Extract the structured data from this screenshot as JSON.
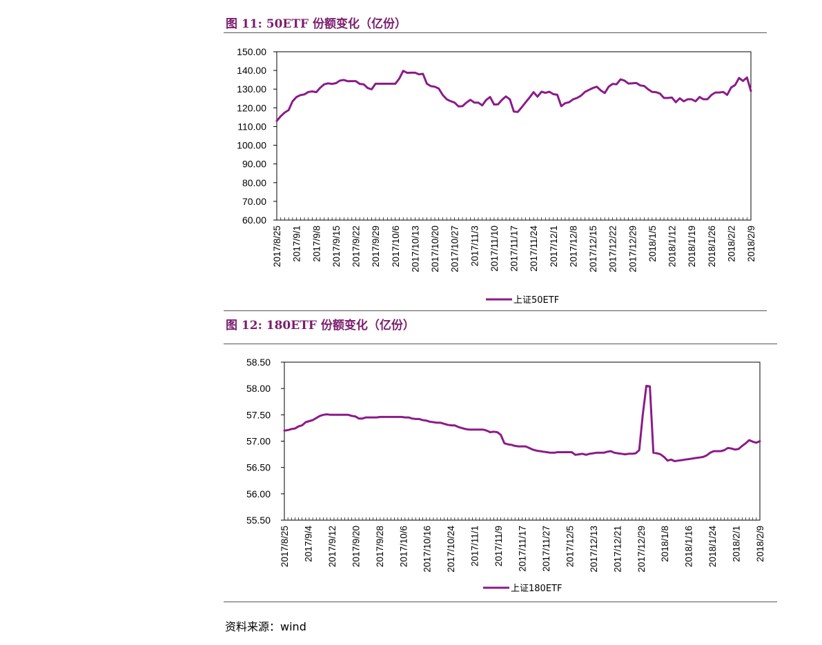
{
  "figure1": {
    "title": "图 11: 50ETF 份额变化（亿份）"
  },
  "figure2": {
    "title": "图 12: 180ETF 份额变化（亿份）"
  },
  "source": {
    "label": "资料来源：",
    "value": "wind"
  },
  "colors": {
    "series": "#8b1a89",
    "title": "#7a1d6e"
  },
  "chart_data": [
    {
      "type": "line",
      "title": "图 11: 50ETF 份额变化（亿份）",
      "xlabel": "",
      "ylabel": "",
      "ylim": [
        60,
        150
      ],
      "y_ticks": [
        "150.00",
        "140.00",
        "130.00",
        "120.00",
        "110.00",
        "100.00",
        "90.00",
        "80.00",
        "70.00",
        "60.00"
      ],
      "x_tick_labels": [
        "2017/8/25",
        "2017/9/1",
        "2017/9/8",
        "2017/9/15",
        "2017/9/22",
        "2017/9/29",
        "2017/10/6",
        "2017/10/13",
        "2017/10/20",
        "2017/10/27",
        "2017/11/3",
        "2017/11/10",
        "2017/11/17",
        "2017/11/24",
        "2017/12/1",
        "2017/12/8",
        "2017/12/15",
        "2017/12/22",
        "2017/12/29",
        "2018/1/5",
        "2018/1/12",
        "2018/1/19",
        "2018/1/26",
        "2018/2/2",
        "2018/2/9"
      ],
      "legend": [
        "上证50ETF"
      ],
      "series": [
        {
          "name": "上证50ETF",
          "values": [
            113.0,
            115.5,
            117.5,
            118.8,
            123.5,
            125.8,
            126.8,
            127.2,
            128.5,
            128.8,
            128.4,
            130.8,
            132.6,
            133.1,
            132.8,
            133.2,
            134.6,
            134.9,
            134.2,
            134.3,
            134.3,
            132.8,
            132.6,
            130.6,
            129.9,
            132.9,
            132.9,
            132.9,
            132.9,
            132.9,
            132.9,
            135.6,
            139.8,
            138.7,
            138.8,
            138.8,
            137.9,
            138.2,
            132.9,
            131.6,
            131.3,
            130.3,
            126.9,
            124.6,
            123.6,
            122.8,
            120.8,
            120.9,
            122.8,
            124.3,
            122.8,
            122.8,
            121.3,
            124.2,
            125.8,
            121.8,
            121.9,
            124.3,
            126.1,
            124.5,
            118.0,
            117.8,
            120.3,
            123.0,
            125.6,
            128.4,
            126.0,
            128.6,
            128.0,
            128.6,
            127.3,
            127.0,
            120.9,
            122.5,
            123.0,
            124.6,
            125.3,
            126.5,
            128.5,
            129.6,
            130.6,
            131.3,
            129.3,
            127.9,
            131.3,
            132.8,
            132.6,
            135.2,
            134.6,
            133.0,
            133.1,
            133.3,
            132.0,
            131.7,
            129.9,
            128.5,
            128.4,
            127.6,
            125.3,
            125.3,
            125.5,
            123.0,
            125.1,
            123.5,
            124.6,
            124.6,
            123.5,
            125.8,
            124.6,
            124.6,
            126.9,
            128.2,
            128.2,
            128.5,
            126.9,
            130.9,
            132.2,
            136.0,
            134.4,
            136.2,
            129.0
          ]
        }
      ]
    },
    {
      "type": "line",
      "title": "图 12: 180ETF 份额变化（亿份）",
      "xlabel": "",
      "ylabel": "",
      "ylim": [
        55.5,
        58.5
      ],
      "y_ticks": [
        "58.50",
        "58.00",
        "57.50",
        "57.00",
        "56.50",
        "56.00",
        "55.50"
      ],
      "x_tick_labels": [
        "2017/8/25",
        "2017/9/4",
        "2017/9/12",
        "2017/9/20",
        "2017/9/28",
        "2017/10/6",
        "2017/10/16",
        "2017/10/24",
        "2017/11/1",
        "2017/11/9",
        "2017/11/17",
        "2017/11/27",
        "2017/12/5",
        "2017/12/13",
        "2017/12/21",
        "2017/12/29",
        "2018/1/8",
        "2018/1/16",
        "2018/1/24",
        "2018/2/1",
        "2018/2/9"
      ],
      "legend": [
        "上证180ETF"
      ],
      "series": [
        {
          "name": "上证180ETF",
          "values": [
            57.2,
            57.21,
            57.23,
            57.24,
            57.28,
            57.3,
            57.36,
            57.38,
            57.4,
            57.44,
            57.48,
            57.5,
            57.51,
            57.5,
            57.5,
            57.5,
            57.5,
            57.5,
            57.5,
            57.48,
            57.47,
            57.43,
            57.43,
            57.45,
            57.45,
            57.45,
            57.45,
            57.46,
            57.46,
            57.46,
            57.46,
            57.46,
            57.46,
            57.46,
            57.45,
            57.45,
            57.43,
            57.42,
            57.42,
            57.4,
            57.39,
            57.37,
            57.36,
            57.35,
            57.35,
            57.33,
            57.31,
            57.3,
            57.3,
            57.27,
            57.25,
            57.23,
            57.22,
            57.22,
            57.22,
            57.22,
            57.22,
            57.2,
            57.17,
            57.18,
            57.17,
            57.12,
            56.96,
            56.94,
            56.93,
            56.91,
            56.9,
            56.9,
            56.9,
            56.87,
            56.84,
            56.82,
            56.81,
            56.8,
            56.79,
            56.78,
            56.78,
            56.79,
            56.79,
            56.79,
            56.79,
            56.79,
            56.74,
            56.75,
            56.76,
            56.74,
            56.76,
            56.77,
            56.78,
            56.78,
            56.78,
            56.8,
            56.81,
            56.78,
            56.77,
            56.76,
            56.75,
            56.76,
            56.76,
            56.77,
            56.83,
            57.5,
            58.05,
            58.04,
            56.78,
            56.77,
            56.75,
            56.7,
            56.63,
            56.65,
            56.62,
            56.63,
            56.64,
            56.65,
            56.66,
            56.67,
            56.68,
            56.69,
            56.7,
            56.73,
            56.78,
            56.81,
            56.81,
            56.81,
            56.83,
            56.87,
            56.86,
            56.84,
            56.85,
            56.91,
            56.96,
            57.02,
            56.99,
            56.97,
            57.0
          ]
        }
      ]
    }
  ]
}
